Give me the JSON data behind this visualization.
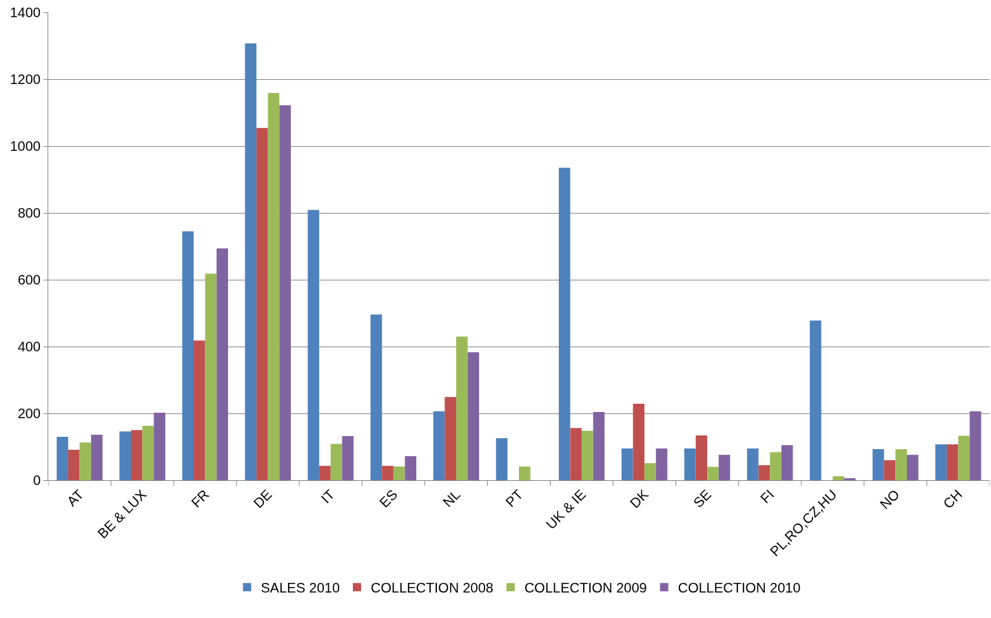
{
  "chart_data": {
    "type": "bar",
    "categories": [
      "AT",
      "BE & LUX",
      "FR",
      "DE",
      "IT",
      "ES",
      "NL",
      "PT",
      "UK & IE",
      "DK",
      "SE",
      "FI",
      "PL,RO,CZ,HU",
      "NO",
      "CH"
    ],
    "series": [
      {
        "name": "SALES 2010",
        "color": "#4f81bd",
        "values": [
          130,
          146,
          745,
          1307,
          809,
          496,
          206,
          126,
          935,
          95,
          95,
          95,
          478,
          93,
          107
        ]
      },
      {
        "name": "COLLECTION 2008",
        "color": "#c0504d",
        "values": [
          91,
          150,
          418,
          1054,
          43,
          43,
          249,
          0,
          156,
          229,
          134,
          45,
          0,
          60,
          107
        ]
      },
      {
        "name": "COLLECTION 2009",
        "color": "#9bbb59",
        "values": [
          113,
          163,
          618,
          1159,
          109,
          41,
          430,
          41,
          148,
          51,
          40,
          84,
          12,
          93,
          133
        ]
      },
      {
        "name": "COLLECTION 2010",
        "color": "#8064a2",
        "values": [
          136,
          202,
          694,
          1122,
          132,
          72,
          383,
          0,
          204,
          95,
          76,
          105,
          6,
          76,
          206
        ]
      }
    ],
    "ylim": [
      0,
      1400
    ],
    "yticks": [
      0,
      200,
      400,
      600,
      800,
      1000,
      1200,
      1400
    ],
    "grid": "y",
    "legend": "bottom"
  }
}
